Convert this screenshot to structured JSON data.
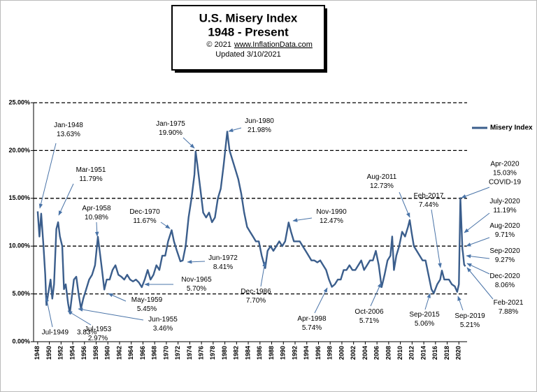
{
  "chart_data": {
    "type": "line",
    "title": "U.S. Misery Index",
    "subtitle": "1948 - Present",
    "copyright": "© 2021",
    "source": "www.InflationData.com",
    "updated": "Updated 3/10/2021",
    "xlim": [
      1947.3,
      2021.4
    ],
    "xticks": [
      1948,
      1950,
      1952,
      1954,
      1956,
      1958,
      1960,
      1962,
      1964,
      1966,
      1968,
      1970,
      1972,
      1974,
      1976,
      1978,
      1980,
      1982,
      1984,
      1986,
      1988,
      1990,
      1992,
      1994,
      1996,
      1998,
      2000,
      2002,
      2004,
      2006,
      2008,
      2010,
      2012,
      2014,
      2016,
      2018,
      2020
    ],
    "ylim": [
      0,
      25
    ],
    "yticks": [
      {
        "value": 0,
        "label": "0.00%"
      },
      {
        "value": 5,
        "label": "5.00%"
      },
      {
        "value": 10,
        "label": "10.00%"
      },
      {
        "value": 15,
        "label": "15.00%"
      },
      {
        "value": 20,
        "label": "20.00%"
      },
      {
        "value": 25,
        "label": "25.00%"
      }
    ],
    "grid": true,
    "legend": "right",
    "series": [
      {
        "name": "Misery Index",
        "color": "#3b5e8c",
        "x": [
          1948.0,
          1948.3,
          1948.6,
          1949.0,
          1949.3,
          1949.5,
          1949.8,
          1950.2,
          1950.5,
          1950.8,
          1951.2,
          1951.5,
          1951.8,
          1952.2,
          1952.5,
          1952.8,
          1953.2,
          1953.5,
          1953.8,
          1954.2,
          1954.6,
          1955.0,
          1955.4,
          1955.8,
          1956.3,
          1956.8,
          1957.3,
          1957.8,
          1958.3,
          1958.7,
          1959.0,
          1959.4,
          1959.8,
          1960.3,
          1960.8,
          1961.3,
          1961.8,
          1962.3,
          1962.8,
          1963.3,
          1963.8,
          1964.3,
          1964.8,
          1965.3,
          1965.8,
          1966.3,
          1966.8,
          1967.3,
          1967.8,
          1968.3,
          1968.8,
          1969.3,
          1969.8,
          1970.3,
          1970.9,
          1971.3,
          1971.8,
          1972.4,
          1972.8,
          1973.3,
          1973.8,
          1974.3,
          1974.8,
          1975.0,
          1975.3,
          1975.8,
          1976.3,
          1976.8,
          1977.3,
          1977.8,
          1978.3,
          1978.8,
          1979.3,
          1979.8,
          1980.4,
          1980.8,
          1981.3,
          1981.8,
          1982.3,
          1982.8,
          1983.3,
          1983.8,
          1984.3,
          1984.8,
          1985.3,
          1985.8,
          1986.3,
          1986.9,
          1987.3,
          1987.8,
          1988.3,
          1988.8,
          1989.3,
          1989.8,
          1990.3,
          1990.9,
          1991.3,
          1991.8,
          1992.3,
          1992.8,
          1993.3,
          1993.8,
          1994.3,
          1994.8,
          1995.3,
          1995.8,
          1996.3,
          1996.8,
          1997.3,
          1997.8,
          1998.3,
          1998.8,
          1999.3,
          1999.8,
          2000.3,
          2000.8,
          2001.3,
          2001.8,
          2002.3,
          2002.8,
          2003.3,
          2003.8,
          2004.3,
          2004.8,
          2005.3,
          2005.8,
          2006.3,
          2006.8,
          2007.3,
          2007.8,
          2008.3,
          2008.6,
          2008.9,
          2009.3,
          2009.8,
          2010.3,
          2010.8,
          2011.3,
          2011.6,
          2011.9,
          2012.3,
          2012.8,
          2013.3,
          2013.8,
          2014.3,
          2014.8,
          2015.3,
          2015.7,
          2016.3,
          2016.8,
          2017.1,
          2017.5,
          2017.9,
          2018.3,
          2018.8,
          2019.3,
          2019.7,
          2020.0,
          2020.25,
          2020.5,
          2020.6,
          2020.7,
          2020.9,
          2021.1
        ],
        "values": [
          13.63,
          11,
          13.4,
          10,
          7,
          3.83,
          5,
          6.5,
          4.5,
          6,
          11.79,
          12.5,
          11,
          10,
          5.5,
          6,
          4,
          2.97,
          4.5,
          6.5,
          6.8,
          5,
          3.46,
          4.5,
          5.5,
          6.5,
          7,
          8,
          10.98,
          9,
          7.5,
          5.45,
          6.5,
          6.5,
          7.5,
          8,
          7,
          6.8,
          6.5,
          7,
          6.5,
          6.3,
          6.5,
          6.2,
          5.7,
          6.5,
          7.5,
          6.5,
          7,
          8,
          7.5,
          9,
          9,
          10.5,
          11.67,
          10.5,
          9.5,
          8.41,
          8.5,
          10,
          13,
          15,
          17.5,
          19.9,
          18.5,
          16,
          13.5,
          13,
          13.5,
          12.5,
          13,
          15,
          16,
          18.5,
          21.98,
          20,
          19,
          18,
          17,
          15.5,
          13.5,
          12,
          11.5,
          11,
          10.5,
          10.5,
          9,
          7.7,
          9.5,
          10,
          9.5,
          10,
          10.5,
          10,
          10.5,
          12.47,
          11.5,
          10.5,
          10.5,
          10.5,
          10,
          9.5,
          9,
          8.5,
          8.5,
          8.3,
          8.5,
          8,
          7.5,
          6.5,
          5.74,
          6,
          6.5,
          6.5,
          7.5,
          7.5,
          8,
          7.5,
          7.5,
          8,
          8.5,
          7.5,
          8,
          8.5,
          8.5,
          9.5,
          8,
          5.71,
          7,
          8.5,
          9,
          11,
          7.5,
          9,
          10,
          11.5,
          11,
          12,
          12.73,
          11.5,
          10,
          9.5,
          9,
          8.5,
          8.5,
          7,
          5.5,
          5.06,
          6,
          6.5,
          7.44,
          6.5,
          6.5,
          6.5,
          6,
          5.8,
          5.21,
          6,
          15.03,
          11.19,
          9.71,
          9.27,
          8.06,
          7.88
        ]
      }
    ],
    "annotations": [
      [
        "Jan-1948",
        "13.63%"
      ],
      [
        "Mar-1951",
        "11.79%"
      ],
      [
        "Apr-1958",
        "10.98%"
      ],
      [
        "Dec-1970",
        "11.67%"
      ],
      [
        "Jan-1975",
        "19.90%"
      ],
      [
        "Jun-1980",
        "21.98%"
      ],
      [
        "Jun-1972",
        "8.41%"
      ],
      [
        "Nov-1965",
        "5.70%"
      ],
      [
        "May-1959",
        "5.45%"
      ],
      [
        "Jun-1955",
        "3.46%"
      ],
      [
        "Jul-1949",
        "3.83%"
      ],
      [
        "Jul-1953",
        "2.97%"
      ],
      [
        "Dec-1986",
        "7.70%"
      ],
      [
        "Nov-1990",
        "12.47%"
      ],
      [
        "Apr-1998",
        "5.74%"
      ],
      [
        "Oct-2006",
        "5.71%"
      ],
      [
        "Aug-2011",
        "12.73%"
      ],
      [
        "Feb-2017",
        "7.44%"
      ],
      [
        "Sep-2015",
        "5.06%"
      ],
      [
        "Sep-2019",
        "5.21%"
      ],
      [
        "Apr-2020",
        "15.03%",
        "COVID-19"
      ],
      [
        "July-2020",
        "11.19%"
      ],
      [
        "Aug-2020",
        "9.71%"
      ],
      [
        "Sep-2020",
        "9.27%"
      ],
      [
        "Dec-2020",
        "8.06%"
      ],
      [
        "Feb-2021",
        "7.88%"
      ]
    ]
  }
}
